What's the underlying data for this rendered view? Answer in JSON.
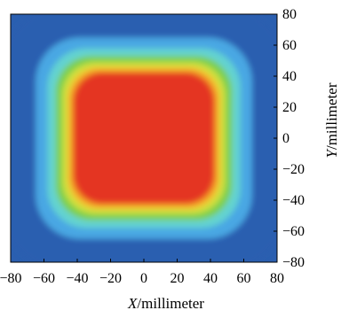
{
  "chart_data": {
    "type": "heatmap",
    "title": "",
    "xlabel": "X/millimeter",
    "ylabel": "Y/millimeter",
    "xlabel_parts": {
      "var": "X",
      "unit": "/millimeter"
    },
    "ylabel_parts": {
      "var": "Y",
      "unit": "/millimeter"
    },
    "xlim": [
      -80,
      80
    ],
    "ylim": [
      -80,
      80
    ],
    "x_ticks": [
      -80,
      -60,
      -40,
      -20,
      0,
      20,
      40,
      60,
      80
    ],
    "y_ticks": [
      -80,
      -60,
      -40,
      -20,
      0,
      20,
      40,
      60,
      80
    ],
    "x_tick_labels": [
      "−80",
      "−60",
      "−40",
      "−20",
      "0",
      "20",
      "40",
      "60",
      "80"
    ],
    "y_tick_labels": [
      "−80",
      "−60",
      "−40",
      "−20",
      "0",
      "20",
      "40",
      "60",
      "80"
    ],
    "y_axis_side": "right",
    "grid": false,
    "legend": "none",
    "field": {
      "shape": "rounded-square",
      "center": [
        0,
        0
      ],
      "contour_half_widths": [
        88,
        65,
        58,
        53,
        49,
        46,
        44,
        42
      ],
      "contour_colors": [
        "#2b5fb0",
        "#4aa7e3",
        "#63d3d0",
        "#7ccf4e",
        "#cfe03c",
        "#f4c430",
        "#f28a25",
        "#e43424"
      ],
      "background_color": "#2b5fb0"
    }
  }
}
